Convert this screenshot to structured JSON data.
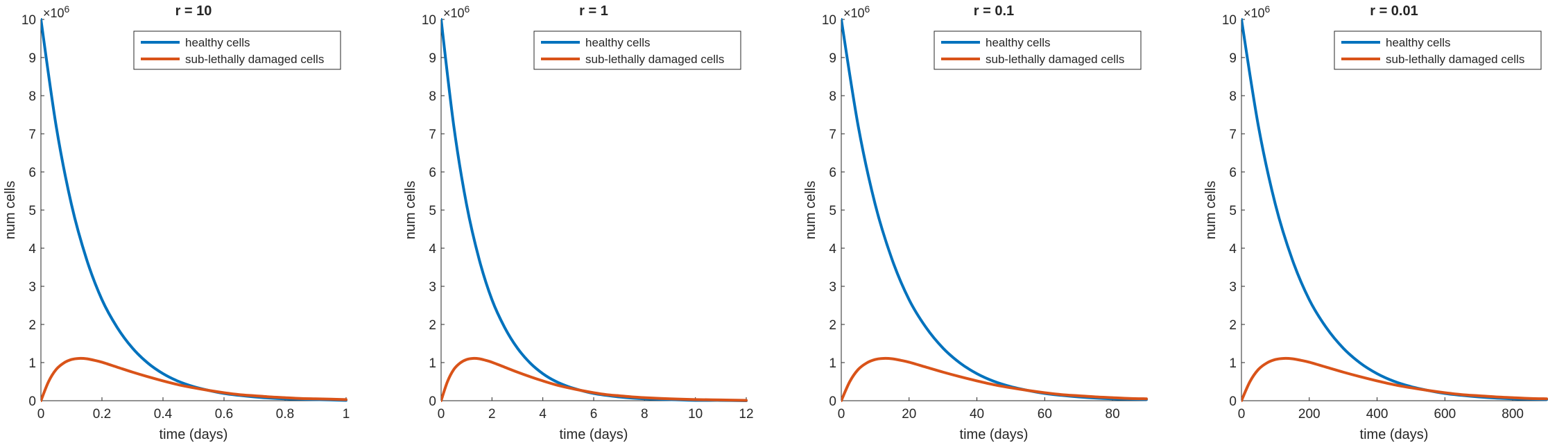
{
  "chart_data": [
    {
      "type": "line",
      "title": "r = 10",
      "xlabel": "time (days)",
      "ylabel": "num cells",
      "y_exponent_label": "×10",
      "y_exponent_power": "6",
      "xlim": [
        0,
        1
      ],
      "ylim": [
        0,
        10
      ],
      "xticks": [
        0,
        0.2,
        0.4,
        0.6,
        0.8,
        1
      ],
      "xtick_labels": [
        "0",
        "0.2",
        "0.4",
        "0.6",
        "0.8",
        "1"
      ],
      "yticks": [
        0,
        1,
        2,
        3,
        4,
        5,
        6,
        7,
        8,
        9,
        10
      ],
      "ytick_labels": [
        "0",
        "1",
        "2",
        "3",
        "4",
        "5",
        "6",
        "7",
        "8",
        "9",
        "10"
      ],
      "legend_position": "top-right",
      "grid": false,
      "series": [
        {
          "name": "healthy cells",
          "color": "#0072BD",
          "x": [
            0,
            0.05,
            0.1,
            0.15,
            0.2,
            0.25,
            0.3,
            0.35,
            0.4,
            0.45,
            0.5,
            0.55,
            0.6,
            0.65,
            0.7,
            0.75,
            0.8,
            0.85,
            0.9,
            0.95,
            1
          ],
          "values": [
            10,
            7.2,
            5.15,
            3.7,
            2.65,
            1.92,
            1.38,
            0.99,
            0.71,
            0.51,
            0.37,
            0.27,
            0.19,
            0.14,
            0.1,
            0.07,
            0.05,
            0.04,
            0.03,
            0.02,
            0.01
          ]
        },
        {
          "name": "sub-lethally damaged cells",
          "color": "#D95319",
          "x": [
            0,
            0.025,
            0.05,
            0.075,
            0.1,
            0.125,
            0.15,
            0.175,
            0.2,
            0.25,
            0.3,
            0.35,
            0.4,
            0.45,
            0.5,
            0.55,
            0.6,
            0.65,
            0.7,
            0.75,
            0.8,
            0.85,
            0.9,
            0.95,
            1
          ],
          "values": [
            0,
            0.5,
            0.82,
            0.99,
            1.08,
            1.11,
            1.1,
            1.06,
            1.01,
            0.88,
            0.75,
            0.63,
            0.52,
            0.42,
            0.34,
            0.27,
            0.21,
            0.16,
            0.13,
            0.1,
            0.08,
            0.06,
            0.05,
            0.04,
            0.03
          ]
        }
      ]
    },
    {
      "type": "line",
      "title": "r = 1",
      "xlabel": "time (days)",
      "ylabel": "num cells",
      "y_exponent_label": "×10",
      "y_exponent_power": "6",
      "xlim": [
        0,
        12
      ],
      "ylim": [
        0,
        10
      ],
      "xticks": [
        0,
        2,
        4,
        6,
        8,
        10,
        12
      ],
      "xtick_labels": [
        "0",
        "2",
        "4",
        "6",
        "8",
        "10",
        "12"
      ],
      "yticks": [
        0,
        1,
        2,
        3,
        4,
        5,
        6,
        7,
        8,
        9,
        10
      ],
      "ytick_labels": [
        "0",
        "1",
        "2",
        "3",
        "4",
        "5",
        "6",
        "7",
        "8",
        "9",
        "10"
      ],
      "legend_position": "top-right",
      "grid": false,
      "series": [
        {
          "name": "healthy cells",
          "color": "#0072BD",
          "x": [
            0,
            0.5,
            1,
            1.5,
            2,
            2.5,
            3,
            3.5,
            4,
            4.5,
            5,
            5.5,
            6,
            6.5,
            7,
            7.5,
            8,
            9,
            10,
            11,
            12
          ],
          "values": [
            10,
            7.2,
            5.15,
            3.7,
            2.65,
            1.92,
            1.38,
            0.99,
            0.71,
            0.51,
            0.37,
            0.27,
            0.19,
            0.14,
            0.1,
            0.07,
            0.05,
            0.03,
            0.01,
            0.01,
            0
          ]
        },
        {
          "name": "sub-lethally damaged cells",
          "color": "#D95319",
          "x": [
            0,
            0.25,
            0.5,
            0.75,
            1,
            1.25,
            1.5,
            1.75,
            2,
            2.5,
            3,
            3.5,
            4,
            4.5,
            5,
            5.5,
            6,
            6.5,
            7,
            7.5,
            8,
            9,
            10,
            11,
            12
          ],
          "values": [
            0,
            0.5,
            0.82,
            0.99,
            1.08,
            1.11,
            1.1,
            1.06,
            1.01,
            0.88,
            0.75,
            0.63,
            0.52,
            0.42,
            0.34,
            0.27,
            0.21,
            0.16,
            0.13,
            0.1,
            0.08,
            0.05,
            0.03,
            0.02,
            0.01
          ]
        }
      ]
    },
    {
      "type": "line",
      "title": "r = 0.1",
      "xlabel": "time (days)",
      "ylabel": "num cells",
      "y_exponent_label": "×10",
      "y_exponent_power": "6",
      "xlim": [
        0,
        90
      ],
      "ylim": [
        0,
        10
      ],
      "xticks": [
        0,
        20,
        40,
        60,
        80
      ],
      "xtick_labels": [
        "0",
        "20",
        "40",
        "60",
        "80"
      ],
      "yticks": [
        0,
        1,
        2,
        3,
        4,
        5,
        6,
        7,
        8,
        9,
        10
      ],
      "ytick_labels": [
        "0",
        "1",
        "2",
        "3",
        "4",
        "5",
        "6",
        "7",
        "8",
        "9",
        "10"
      ],
      "legend_position": "top-right",
      "grid": false,
      "series": [
        {
          "name": "healthy cells",
          "color": "#0072BD",
          "x": [
            0,
            5,
            10,
            15,
            20,
            25,
            30,
            35,
            40,
            45,
            50,
            55,
            60,
            65,
            70,
            75,
            80,
            85,
            90
          ],
          "values": [
            10,
            7.2,
            5.15,
            3.7,
            2.65,
            1.92,
            1.38,
            0.99,
            0.71,
            0.51,
            0.37,
            0.27,
            0.19,
            0.14,
            0.1,
            0.07,
            0.05,
            0.04,
            0.03
          ]
        },
        {
          "name": "sub-lethally damaged cells",
          "color": "#D95319",
          "x": [
            0,
            2.5,
            5,
            7.5,
            10,
            12.5,
            15,
            17.5,
            20,
            25,
            30,
            35,
            40,
            45,
            50,
            55,
            60,
            65,
            70,
            75,
            80,
            85,
            90
          ],
          "values": [
            0,
            0.5,
            0.82,
            0.99,
            1.08,
            1.11,
            1.1,
            1.06,
            1.01,
            0.88,
            0.75,
            0.63,
            0.52,
            0.42,
            0.34,
            0.27,
            0.21,
            0.16,
            0.13,
            0.1,
            0.08,
            0.06,
            0.05
          ]
        }
      ]
    },
    {
      "type": "line",
      "title": "r = 0.01",
      "xlabel": "time (days)",
      "ylabel": "num cells",
      "y_exponent_label": "×10",
      "y_exponent_power": "6",
      "xlim": [
        0,
        900
      ],
      "ylim": [
        0,
        10
      ],
      "xticks": [
        0,
        200,
        400,
        600,
        800
      ],
      "xtick_labels": [
        "0",
        "200",
        "400",
        "600",
        "800"
      ],
      "yticks": [
        0,
        1,
        2,
        3,
        4,
        5,
        6,
        7,
        8,
        9,
        10
      ],
      "ytick_labels": [
        "0",
        "1",
        "2",
        "3",
        "4",
        "5",
        "6",
        "7",
        "8",
        "9",
        "10"
      ],
      "legend_position": "top-right",
      "grid": false,
      "series": [
        {
          "name": "healthy cells",
          "color": "#0072BD",
          "x": [
            0,
            50,
            100,
            150,
            200,
            250,
            300,
            350,
            400,
            450,
            500,
            550,
            600,
            650,
            700,
            750,
            800,
            850,
            900
          ],
          "values": [
            10,
            7.2,
            5.15,
            3.7,
            2.65,
            1.92,
            1.38,
            0.99,
            0.71,
            0.51,
            0.37,
            0.27,
            0.19,
            0.14,
            0.1,
            0.07,
            0.05,
            0.04,
            0.03
          ]
        },
        {
          "name": "sub-lethally damaged cells",
          "color": "#D95319",
          "x": [
            0,
            25,
            50,
            75,
            100,
            125,
            150,
            175,
            200,
            250,
            300,
            350,
            400,
            450,
            500,
            550,
            600,
            650,
            700,
            750,
            800,
            850,
            900
          ],
          "values": [
            0,
            0.5,
            0.82,
            0.99,
            1.08,
            1.11,
            1.1,
            1.06,
            1.01,
            0.88,
            0.75,
            0.63,
            0.52,
            0.42,
            0.34,
            0.27,
            0.21,
            0.16,
            0.13,
            0.1,
            0.08,
            0.06,
            0.05
          ]
        }
      ]
    }
  ]
}
